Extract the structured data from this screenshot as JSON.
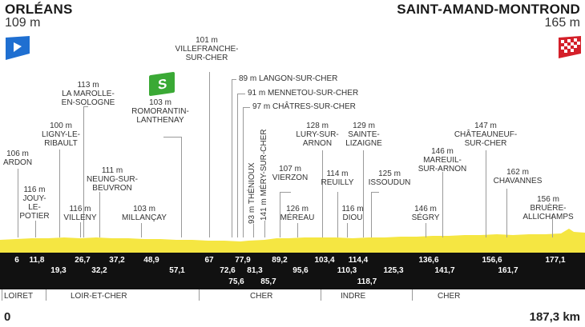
{
  "start": {
    "city": "ORLÉANS",
    "altitude": "109 m"
  },
  "finish": {
    "city": "SAINT-AMAND-MONTROND",
    "altitude": "165 m"
  },
  "sprint_marker": "S",
  "waypoints": [
    {
      "alt": "106 m",
      "name": "ARDON"
    },
    {
      "alt": "116 m",
      "name": "JOUY-\nLE-\nPOTIER"
    },
    {
      "alt": "100 m",
      "name": "LIGNY-LE-\nRIBAULT"
    },
    {
      "alt": "113 m",
      "name": "LA MAROLLE-\nEN-SOLOGNE"
    },
    {
      "alt": "116 m",
      "name": "VILLENY"
    },
    {
      "alt": "111 m",
      "name": "NEUNG-SUR-\nBEUVRON"
    },
    {
      "alt": "103 m",
      "name": "ROMORANTIN-\nLANTHENAY"
    },
    {
      "alt": "103 m",
      "name": "MILLANÇAY"
    },
    {
      "alt": "101 m",
      "name": "VILLEFRANCHE-\nSUR-CHER"
    },
    {
      "alt": "89 m",
      "name": "LANGON-SUR-CHER"
    },
    {
      "alt": "91 m",
      "name": "MENNETOU-SUR-CHER"
    },
    {
      "alt": "97 m",
      "name": "CHÂTRES-SUR-CHER"
    },
    {
      "alt": "93 m",
      "name": "THÉNIOUX"
    },
    {
      "alt": "141 m",
      "name": "MÉRY-SUR-CHER"
    },
    {
      "alt": "107 m",
      "name": "VIERZON"
    },
    {
      "alt": "126 m",
      "name": "MÉREAU"
    },
    {
      "alt": "128 m",
      "name": "LURY-SUR-\nARNON"
    },
    {
      "alt": "114 m",
      "name": "REUILLY"
    },
    {
      "alt": "116 m",
      "name": "DIOU"
    },
    {
      "alt": "129 m",
      "name": "SAINTE-\nLIZAIGNE"
    },
    {
      "alt": "125 m",
      "name": "ISSOUDUN"
    },
    {
      "alt": "146 m",
      "name": "SÉGRY"
    },
    {
      "alt": "146 m",
      "name": "MAREUIL-\nSUR-ARNON"
    },
    {
      "alt": "147 m",
      "name": "CHÂTEAUNEUF-\nSUR-CHER"
    },
    {
      "alt": "162 m",
      "name": "CHAVANNES"
    },
    {
      "alt": "156 m",
      "name": "BRUÈRE-\nALLICHAMPS"
    }
  ],
  "km_row1": [
    "6",
    "11,8",
    "26,7",
    "37,2",
    "48,9",
    "67",
    "77,9",
    "89,2",
    "103,4",
    "114,4",
    "136,6",
    "156,6",
    "177,1"
  ],
  "km_row2": [
    "19,3",
    "32,2",
    "57,1",
    "72,6",
    "81,3",
    "95,6",
    "110,3",
    "125,3",
    "141,7",
    "161,7"
  ],
  "km_row3": [
    "75,6",
    "85,7",
    "118,7"
  ],
  "departments": [
    "LOIRET",
    "LOIR-ET-CHER",
    "CHER",
    "INDRE",
    "CHER"
  ],
  "distance_start": "0",
  "distance_end": "187,3 km",
  "colors": {
    "profile": "#f5e642",
    "band": "#111111",
    "start_flag": "#1f6fd1",
    "finish_flag": "#d4202a",
    "sprint": "#3aa935"
  }
}
